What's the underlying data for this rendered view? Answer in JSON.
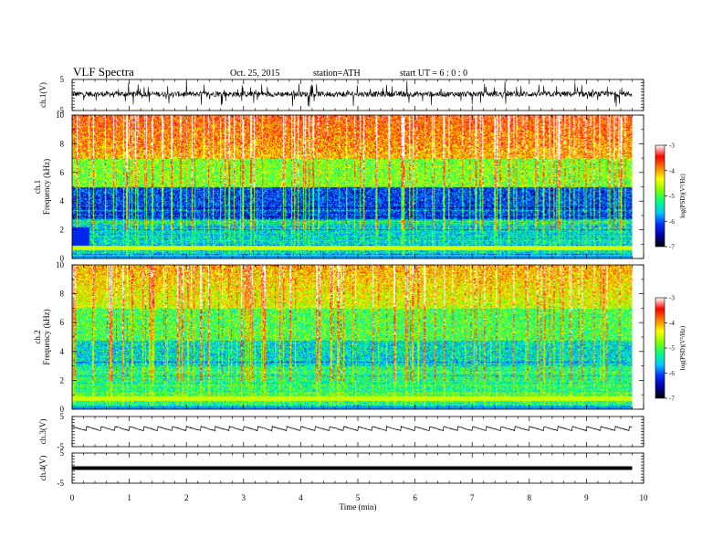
{
  "header": {
    "title": "VLF  Spectra",
    "date": "Oct. 25, 2015",
    "station": "station=ATH",
    "start": "start  UT  =   6  : 0  : 0"
  },
  "chart_data": [
    {
      "type": "line",
      "ylabel": "ch.1(V)",
      "yticks": [
        "5",
        "-5"
      ],
      "ylim": [
        -5,
        5
      ],
      "description_values": {
        "baseline": 0.3,
        "noise_amplitude": 2.5
      },
      "color": "#000000"
    },
    {
      "type": "heatmap",
      "ylabel": "ch.1\nFrequency  (kHz)",
      "ylabel_lines": [
        "ch.1",
        "Frequency  (kHz)"
      ],
      "yticks": [
        "0",
        "2",
        "4",
        "6",
        "8",
        "10"
      ],
      "ylim": [
        0,
        10
      ],
      "colorbar": {
        "label": "log(PSD)(V²/Hz)",
        "ticks": [
          "-3",
          "-4",
          "-5",
          "-6",
          "-7"
        ],
        "range": [
          -7,
          -3
        ]
      }
    },
    {
      "type": "heatmap",
      "ylabel": "ch.2\nFrequency  (kHz)",
      "ylabel_lines": [
        "ch.2",
        "Frequency  (kHz)"
      ],
      "yticks": [
        "0",
        "2",
        "4",
        "6",
        "8",
        "10"
      ],
      "ylim": [
        0,
        10
      ],
      "colorbar": {
        "label": "log(PSD)(V²/Hz)",
        "ticks": [
          "-3",
          "-4",
          "-5",
          "-6",
          "-7"
        ],
        "range": [
          -7,
          -3
        ]
      }
    },
    {
      "type": "line",
      "ylabel": "ch.3(V)",
      "yticks": [
        "5",
        "-5"
      ],
      "ylim": [
        -5,
        5
      ],
      "description_values": {
        "baseline": 0.8,
        "sawtooth_period_min": 0.25
      },
      "color": "#000000"
    },
    {
      "type": "line",
      "ylabel": "ch.4(V)",
      "yticks": [
        "5",
        "-5"
      ],
      "ylim": [
        -5,
        5
      ],
      "description_values": {
        "baseline": 0
      },
      "color": "#000000"
    }
  ],
  "xaxis": {
    "label": "Time  (min)",
    "ticks": [
      "0",
      "1",
      "2",
      "3",
      "4",
      "5",
      "6",
      "7",
      "8",
      "9",
      "10"
    ],
    "xlim": [
      0,
      10
    ],
    "data_end": 9.8
  },
  "colormap": [
    "#000000",
    "#0000a0",
    "#0030ff",
    "#00c8ff",
    "#00ff80",
    "#80ff00",
    "#ffff00",
    "#ff8000",
    "#ff0000",
    "#ffffff"
  ]
}
